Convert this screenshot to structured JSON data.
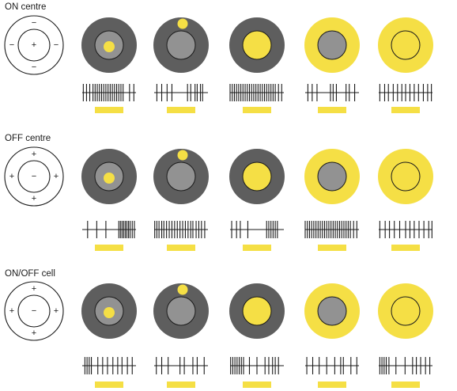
{
  "colors": {
    "surround": "#5e5e5e",
    "center": "#929292",
    "light": "#f5df45",
    "line": "#1a1a1a"
  },
  "rows": [
    {
      "label": "ON centre",
      "center_sign": "+",
      "surround_sign": "−",
      "conditions": [
        {
          "stimulus": "center-spot",
          "spikes": [
            0.02,
            0.08,
            0.14,
            0.2,
            0.24,
            0.28,
            0.32,
            0.36,
            0.4,
            0.44,
            0.48,
            0.52,
            0.56,
            0.6,
            0.64,
            0.68,
            0.72,
            0.76,
            0.88,
            0.96
          ],
          "light_bar": true
        },
        {
          "stimulus": "surround-spot",
          "spikes": [
            0.05,
            0.14,
            0.24,
            0.33,
            0.62,
            0.68,
            0.76,
            0.8,
            0.86,
            0.9
          ],
          "light_bar": true
        },
        {
          "stimulus": "center-full",
          "spikes": [
            0.0,
            0.04,
            0.08,
            0.12,
            0.16,
            0.2,
            0.24,
            0.28,
            0.32,
            0.36,
            0.4,
            0.44,
            0.48,
            0.52,
            0.56,
            0.6,
            0.64,
            0.68,
            0.72,
            0.76,
            0.8,
            0.84,
            0.9,
            0.96
          ],
          "light_bar": true
        },
        {
          "stimulus": "annulus",
          "spikes": [
            0.05,
            0.13,
            0.22,
            0.47,
            0.52,
            0.58,
            0.76,
            0.82,
            0.92
          ],
          "light_bar": true
        },
        {
          "stimulus": "full-field",
          "spikes": [
            0.02,
            0.11,
            0.18,
            0.27,
            0.35,
            0.43,
            0.5,
            0.58,
            0.66,
            0.74,
            0.83,
            0.91,
            0.98
          ],
          "light_bar": true
        }
      ]
    },
    {
      "label": "OFF centre",
      "center_sign": "−",
      "surround_sign": "+",
      "conditions": [
        {
          "stimulus": "center-spot",
          "spikes": [
            0.1,
            0.27,
            0.44,
            0.68,
            0.71,
            0.74,
            0.77,
            0.8,
            0.83,
            0.86,
            0.89,
            0.93,
            0.97
          ],
          "light_bar": true
        },
        {
          "stimulus": "surround-spot",
          "spikes": [
            0.01,
            0.05,
            0.09,
            0.14,
            0.18,
            0.23,
            0.28,
            0.33,
            0.38,
            0.43,
            0.48,
            0.53,
            0.58,
            0.63,
            0.68,
            0.72,
            0.78,
            0.83,
            0.88,
            0.94
          ],
          "light_bar": true
        },
        {
          "stimulus": "center-full",
          "spikes": [
            0.03,
            0.12,
            0.19,
            0.33,
            0.68,
            0.72,
            0.76,
            0.8,
            0.84,
            0.88
          ],
          "light_bar": true
        },
        {
          "stimulus": "annulus",
          "spikes": [
            0.0,
            0.04,
            0.08,
            0.12,
            0.16,
            0.2,
            0.24,
            0.28,
            0.32,
            0.36,
            0.4,
            0.44,
            0.48,
            0.52,
            0.56,
            0.6,
            0.64,
            0.68,
            0.72,
            0.76,
            0.8,
            0.84,
            0.9,
            0.96
          ],
          "light_bar": true
        },
        {
          "stimulus": "full-field",
          "spikes": [
            0.02,
            0.12,
            0.2,
            0.29,
            0.39,
            0.5,
            0.58,
            0.66,
            0.75,
            0.84,
            0.93,
            0.99
          ],
          "light_bar": true
        }
      ]
    },
    {
      "label": "ON/OFF cell",
      "center_sign": "−",
      "surround_sign": "+",
      "conditions": [
        {
          "stimulus": "center-spot",
          "spikes": [
            0.05,
            0.09,
            0.13,
            0.17,
            0.29,
            0.38,
            0.47,
            0.57,
            0.66,
            0.74,
            0.84,
            0.93
          ],
          "light_bar": true
        },
        {
          "stimulus": "surround-spot",
          "spikes": [
            0.04,
            0.14,
            0.26,
            0.48,
            0.56,
            0.72,
            0.8,
            0.93
          ],
          "light_bar": true
        },
        {
          "stimulus": "center-full",
          "spikes": [
            0.01,
            0.05,
            0.09,
            0.13,
            0.17,
            0.21,
            0.25,
            0.36,
            0.5,
            0.65,
            0.72,
            0.79,
            0.84,
            0.9
          ],
          "light_bar": true
        },
        {
          "stimulus": "annulus",
          "spikes": [
            0.03,
            0.14,
            0.26,
            0.4,
            0.55,
            0.66,
            0.71,
            0.85,
            0.96
          ],
          "light_bar": true
        },
        {
          "stimulus": "full-field",
          "spikes": [
            0.02,
            0.06,
            0.1,
            0.14,
            0.19,
            0.32,
            0.49,
            0.63,
            0.7,
            0.78,
            0.87,
            0.95
          ],
          "light_bar": true
        }
      ]
    }
  ]
}
